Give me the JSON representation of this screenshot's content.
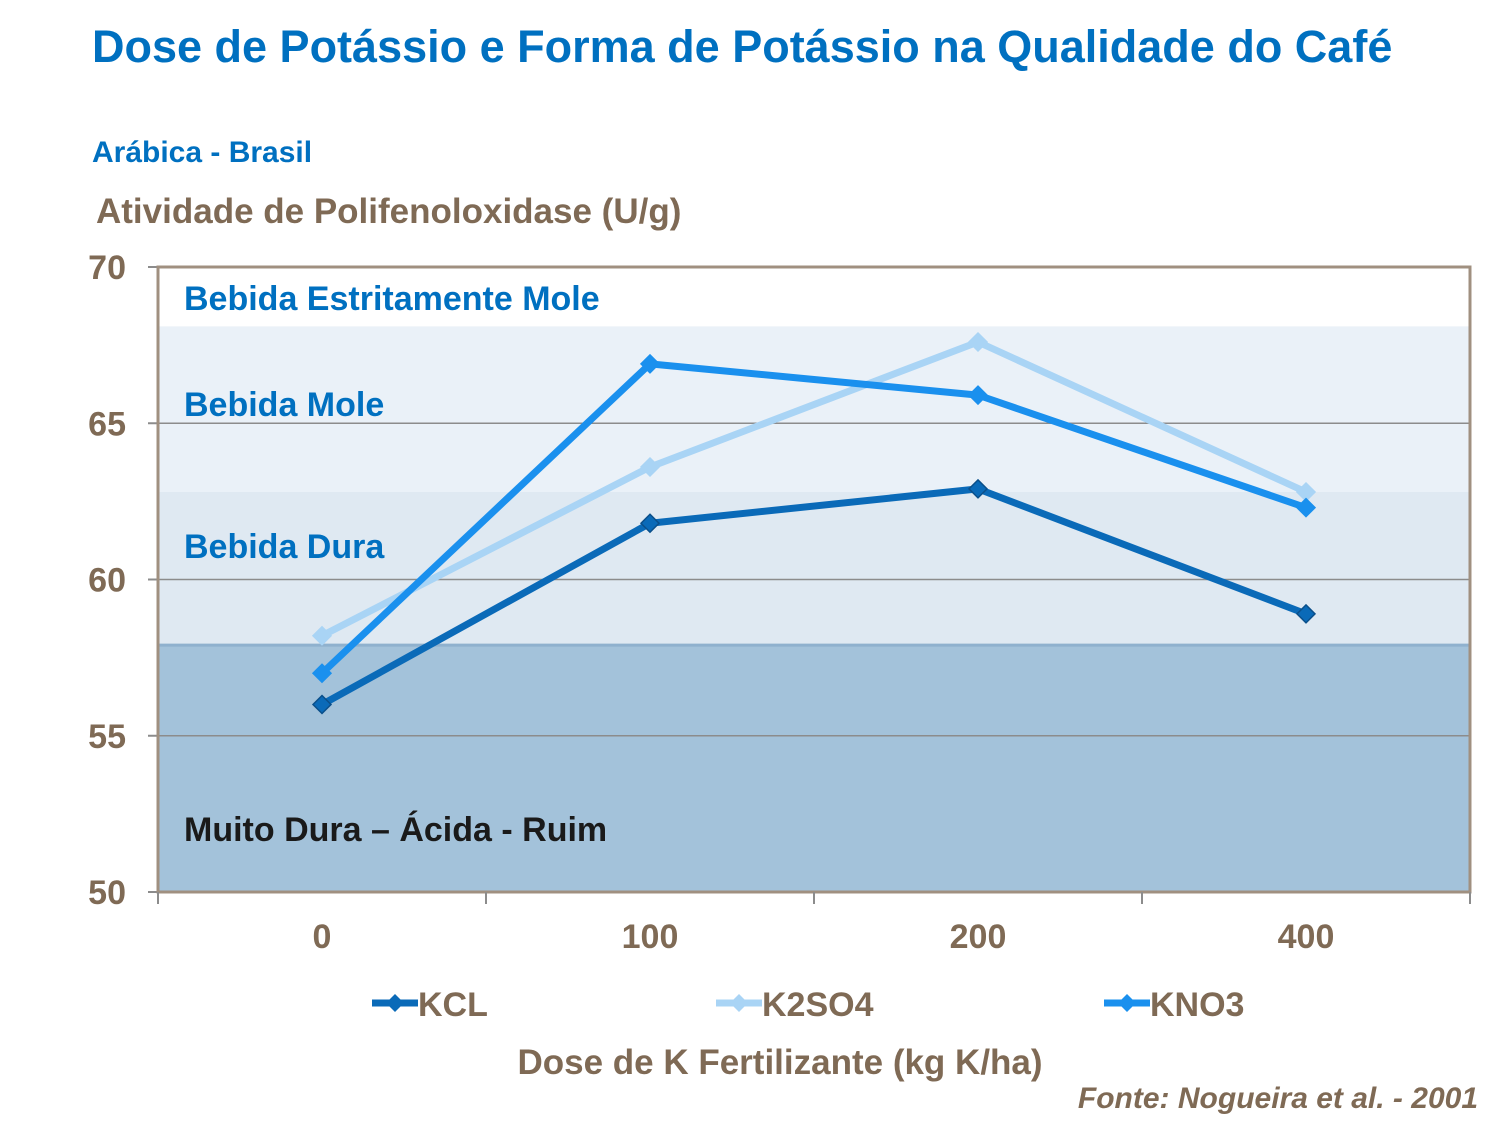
{
  "title": "Dose de Potássio e Forma de Potássio na Qualidade do Café",
  "subtitle": "Arábica - Brasil",
  "source": "Fonte: Nogueira et al. - 2001",
  "chart_data": {
    "type": "line",
    "title": "Dose de Potássio e Forma de Potássio na Qualidade do Café",
    "ylabel": "Atividade de Polifenoloxidase (U/g)",
    "xlabel": "Dose de K Fertilizante (kg K/ha)",
    "categories": [
      "0",
      "100",
      "200",
      "400"
    ],
    "ylim": [
      50,
      70
    ],
    "yticks": [
      50,
      55,
      60,
      65,
      70
    ],
    "grid": true,
    "legend": "bottom",
    "series": [
      {
        "name": "KCL",
        "values": [
          56.0,
          61.8,
          62.9,
          58.9
        ],
        "color": "#0A6AB8"
      },
      {
        "name": "K2SO4",
        "values": [
          58.2,
          63.6,
          67.6,
          62.8
        ],
        "color": "#A9D4F5"
      },
      {
        "name": "KNO3",
        "values": [
          57.0,
          66.9,
          65.9,
          62.3
        ],
        "color": "#1A90EE"
      }
    ],
    "bands": [
      {
        "label": "Bebida Estritamente Mole",
        "from": 68.1,
        "to": 70,
        "color": "#FFFFFF",
        "text_color": "#0070C0"
      },
      {
        "label": "Bebida Mole",
        "from": 62.8,
        "to": 68.1,
        "color": "#EAF1F8",
        "text_color": "#0070C0"
      },
      {
        "label": "Bebida Dura",
        "from": 57.9,
        "to": 62.8,
        "color": "#DFE9F2",
        "text_color": "#0070C0"
      },
      {
        "label": "Muito Dura – Ácida - Ruim",
        "from": 50,
        "to": 57.9,
        "color": "#A3C2DA",
        "text_color": "#1A1A1A"
      }
    ]
  }
}
